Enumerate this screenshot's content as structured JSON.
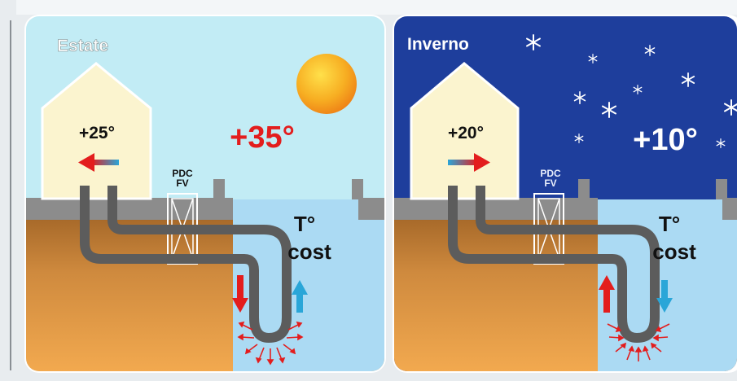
{
  "summer": {
    "title": "Estate",
    "house_temp": "+25°",
    "outside_temp": "+35°",
    "unit_label_line1": "PDC",
    "unit_label_line2": "FV",
    "ground_label_line1": "T°",
    "ground_label_line2": "cost",
    "icon": "sun-icon"
  },
  "winter": {
    "title": "Inverno",
    "house_temp": "+20°",
    "outside_temp": "+10°",
    "unit_label_line1": "PDC",
    "unit_label_line2": "FV",
    "ground_label_line1": "T°",
    "ground_label_line2": "cost",
    "icon": "snowflake-icon"
  },
  "colors": {
    "summer_sky": "#bfeaf4",
    "winter_sky": "#1d3c9a",
    "ground": "#d18a3c",
    "ground_water": "#a9d8f2",
    "pipe": "#5a5a5a",
    "hot_arrow": "#e31d1d",
    "cold_arrow": "#2aa6d8",
    "house": "#fbf4cf",
    "sun": "#f39b1d"
  }
}
